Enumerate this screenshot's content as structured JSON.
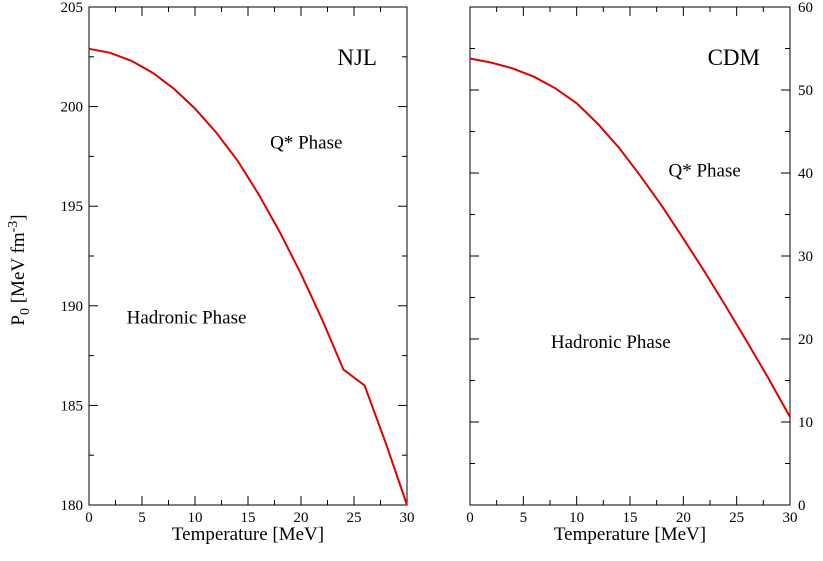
{
  "chart_data": [
    {
      "type": "line",
      "panel_label": "NJL",
      "xlabel": "Temperature [MeV]",
      "ylabel": {
        "main": "P",
        "sub": "0",
        "unit": " [MeV fm",
        "exp": "-3",
        "close": "]"
      },
      "xlim": [
        0,
        30
      ],
      "ylim": [
        180,
        205
      ],
      "x_ticks": [
        0,
        5,
        10,
        15,
        20,
        25,
        30
      ],
      "y_ticks": [
        180,
        185,
        190,
        195,
        200,
        205
      ],
      "y_axis_side": "left",
      "grid": false,
      "color": "#e00000",
      "annotations": [
        {
          "text": "Q* Phase",
          "x": 20.5,
          "y": 197.9
        },
        {
          "text": "Hadronic Phase",
          "x": 9.2,
          "y": 189.1
        }
      ],
      "series": [
        {
          "x": [
            0,
            2,
            4,
            6,
            8,
            10,
            12,
            14,
            16,
            18,
            20,
            22,
            24,
            26,
            28,
            30
          ],
          "y": [
            202.9,
            202.7,
            202.3,
            201.7,
            200.9,
            199.9,
            198.7,
            197.3,
            195.6,
            193.7,
            191.6,
            189.3,
            186.8,
            186.0,
            183.1,
            180.0
          ]
        }
      ]
    },
    {
      "type": "line",
      "panel_label": "CDM",
      "xlabel": "Temperature [MeV]",
      "xlim": [
        0,
        30
      ],
      "ylim": [
        0,
        60
      ],
      "x_ticks": [
        0,
        5,
        10,
        15,
        20,
        25,
        30
      ],
      "y_ticks": [
        0,
        10,
        20,
        30,
        40,
        50,
        60
      ],
      "y_axis_side": "right",
      "grid": false,
      "color": "#e00000",
      "annotations": [
        {
          "text": "Q* Phase",
          "x": 22.0,
          "y": 39.6
        },
        {
          "text": "Hadronic Phase",
          "x": 13.2,
          "y": 18.9
        }
      ],
      "series": [
        {
          "x": [
            0,
            2,
            4,
            6,
            8,
            10,
            12,
            14,
            16,
            18,
            20,
            22,
            24,
            26,
            28,
            30
          ],
          "y": [
            53.8,
            53.3,
            52.6,
            51.6,
            50.2,
            48.4,
            45.9,
            43.0,
            39.6,
            36.0,
            32.1,
            28.1,
            23.9,
            19.6,
            15.2,
            10.6
          ]
        }
      ]
    }
  ]
}
